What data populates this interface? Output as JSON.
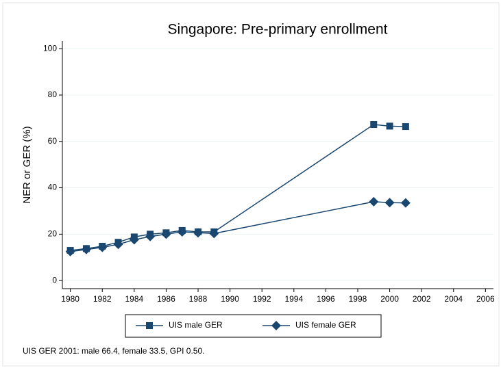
{
  "chart_data": {
    "type": "line",
    "title": "Singapore: Pre-primary enrollment",
    "y_label": "NER or GER (%)",
    "note": "UIS GER 2001: male 66.4, female 33.5, GPI 0.50.",
    "x": [
      1980,
      1981,
      1982,
      1983,
      1984,
      1985,
      1986,
      1987,
      1988,
      1989,
      1999,
      2000,
      2001
    ],
    "series": [
      {
        "name": "UIS male GER",
        "color": "#1a476f",
        "marker": "square",
        "values": [
          13.0,
          13.8,
          14.8,
          16.5,
          18.8,
          20.0,
          20.6,
          21.6,
          21.0,
          21.0,
          67.3,
          66.6,
          66.4
        ]
      },
      {
        "name": "UIS female GER",
        "color": "#1a476f",
        "marker": "diamond",
        "values": [
          12.5,
          13.4,
          14.3,
          15.6,
          17.6,
          19.0,
          20.0,
          21.0,
          20.6,
          20.3,
          34.0,
          33.6,
          33.5
        ]
      }
    ],
    "xlim": [
      1979.5,
      2006.5
    ],
    "xticks": [
      1980,
      1982,
      1984,
      1986,
      1988,
      1990,
      1992,
      1994,
      1996,
      1998,
      2000,
      2002,
      2004,
      2006
    ],
    "ylim": [
      -3.5,
      103.3
    ],
    "yticks": [
      0,
      20,
      40,
      60,
      80,
      100
    ],
    "grid": true,
    "legend": "bottom"
  }
}
